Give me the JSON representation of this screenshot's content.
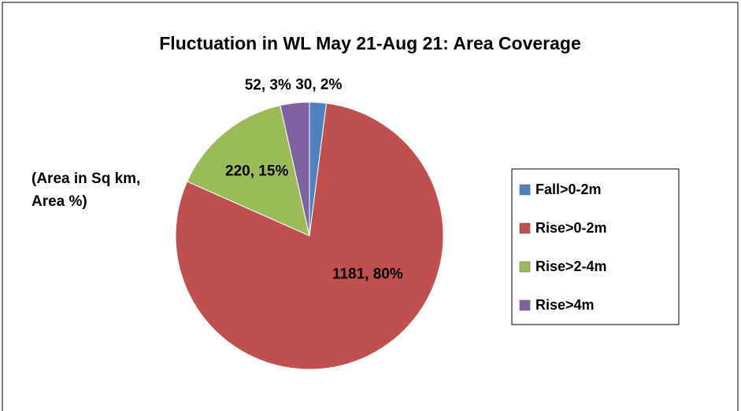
{
  "chart_data": {
    "type": "pie",
    "title": "Fluctuation in WL May 21-Aug 21: Area Coverage",
    "annotation": [
      "(Area in Sq km,",
      "Area  %)"
    ],
    "categories": [
      "Fall>0-2m",
      "Rise>0-2m",
      "Rise>2-4m",
      "Rise>4m"
    ],
    "values": [
      30,
      1181,
      220,
      52
    ],
    "value_labels": [
      "30, 2%",
      "1181, 80%",
      "220, 15%",
      "52, 3%"
    ],
    "colors": [
      "#4f81bd",
      "#c0504d",
      "#9bbb59",
      "#8064a2"
    ],
    "legend": "right"
  }
}
